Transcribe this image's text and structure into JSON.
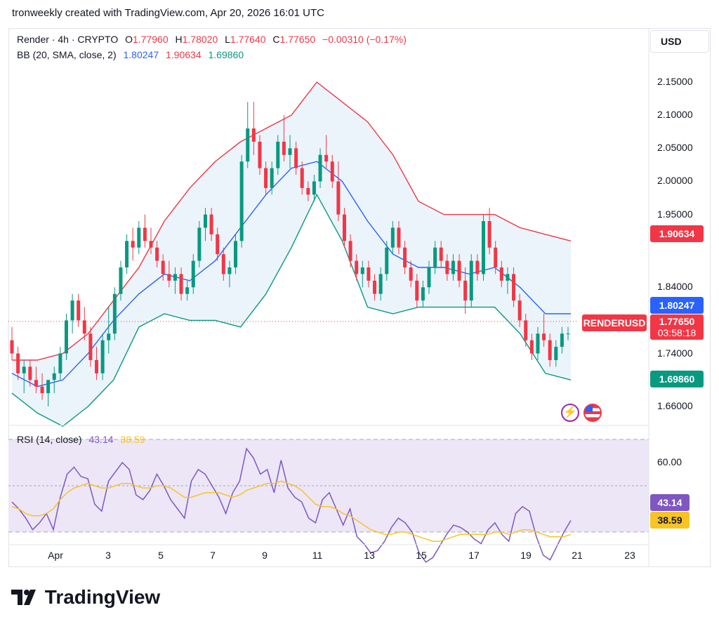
{
  "header": {
    "text": "tronweekly created with TradingView.com, Apr 20, 2026 16:01 UTC"
  },
  "legend": {
    "symbol": "Render · 4h · CRYPTO",
    "open_label": "O",
    "open": "1.77960",
    "high_label": "H",
    "high": "1.78020",
    "low_label": "L",
    "low": "1.77640",
    "close_label": "C",
    "close": "1.77650",
    "change": "−0.00310 (−0.17%)",
    "bb_label": "BB (20, SMA, close, 2)",
    "bb_basis": "1.80247",
    "bb_upper": "1.90634",
    "bb_lower": "1.69860"
  },
  "rsi_legend": {
    "label": "RSI (14, close)",
    "rsi": "43.14",
    "ma": "38.59"
  },
  "currency_button": "USD",
  "price_tags": {
    "upper": "1.90634",
    "basis": "1.80247",
    "symbol": "RENDERUSD",
    "last": "1.77650",
    "countdown": "03:58:18",
    "lower": "1.69860",
    "rsi": "43.14",
    "rsi_ma": "38.59"
  },
  "price_axis": [
    "2.15000",
    "2.10000",
    "2.05000",
    "2.00000",
    "1.95000",
    "1.84000",
    "1.74000",
    "1.66000"
  ],
  "rsi_axis": [
    "60.00"
  ],
  "time_axis": [
    "Apr",
    "3",
    "5",
    "7",
    "9",
    "11",
    "13",
    "15",
    "17",
    "19",
    "21",
    "23"
  ],
  "brand": "TradingView",
  "colors": {
    "up": "#089981",
    "down": "#f23645",
    "bb_basis": "#2962ff",
    "bb_upper": "#f23645",
    "bb_lower": "#089981",
    "bb_fill": "#e3effa",
    "rsi": "#7e57c2",
    "rsi_ma": "#f7c325",
    "rsi_band": "#ece6f7"
  },
  "chart_data": [
    {
      "type": "candlestick",
      "title": "Render · 4h · CRYPTO",
      "x_ticks": [
        "Apr",
        "3",
        "5",
        "7",
        "9",
        "11",
        "13",
        "15",
        "17",
        "19",
        "21",
        "23"
      ],
      "ylim": [
        1.63,
        2.17
      ],
      "y_ticks": [
        2.15,
        2.1,
        2.05,
        2.0,
        1.95,
        1.84,
        1.74,
        1.66
      ],
      "ohlc": [
        [
          1.76,
          1.78,
          1.73,
          1.74
        ],
        [
          1.74,
          1.75,
          1.7,
          1.71
        ],
        [
          1.71,
          1.73,
          1.68,
          1.72
        ],
        [
          1.72,
          1.73,
          1.69,
          1.7
        ],
        [
          1.7,
          1.72,
          1.68,
          1.69
        ],
        [
          1.69,
          1.71,
          1.67,
          1.68
        ],
        [
          1.68,
          1.7,
          1.66,
          1.7
        ],
        [
          1.7,
          1.72,
          1.68,
          1.71
        ],
        [
          1.71,
          1.75,
          1.7,
          1.74
        ],
        [
          1.74,
          1.8,
          1.73,
          1.79
        ],
        [
          1.79,
          1.83,
          1.77,
          1.82
        ],
        [
          1.82,
          1.83,
          1.78,
          1.79
        ],
        [
          1.79,
          1.81,
          1.76,
          1.77
        ],
        [
          1.77,
          1.78,
          1.72,
          1.73
        ],
        [
          1.73,
          1.75,
          1.7,
          1.71
        ],
        [
          1.71,
          1.77,
          1.7,
          1.76
        ],
        [
          1.76,
          1.81,
          1.74,
          1.77
        ],
        [
          1.77,
          1.84,
          1.76,
          1.83
        ],
        [
          1.83,
          1.88,
          1.82,
          1.87
        ],
        [
          1.87,
          1.92,
          1.86,
          1.91
        ],
        [
          1.91,
          1.93,
          1.88,
          1.9
        ],
        [
          1.9,
          1.94,
          1.89,
          1.93
        ],
        [
          1.93,
          1.95,
          1.9,
          1.91
        ],
        [
          1.91,
          1.93,
          1.89,
          1.9
        ],
        [
          1.9,
          1.91,
          1.87,
          1.88
        ],
        [
          1.88,
          1.89,
          1.85,
          1.86
        ],
        [
          1.86,
          1.88,
          1.84,
          1.85
        ],
        [
          1.85,
          1.87,
          1.83,
          1.86
        ],
        [
          1.86,
          1.87,
          1.82,
          1.83
        ],
        [
          1.83,
          1.85,
          1.82,
          1.84
        ],
        [
          1.84,
          1.89,
          1.83,
          1.88
        ],
        [
          1.88,
          1.94,
          1.87,
          1.93
        ],
        [
          1.93,
          1.96,
          1.91,
          1.95
        ],
        [
          1.95,
          1.96,
          1.91,
          1.92
        ],
        [
          1.92,
          1.93,
          1.88,
          1.89
        ],
        [
          1.89,
          1.9,
          1.85,
          1.86
        ],
        [
          1.86,
          1.88,
          1.84,
          1.87
        ],
        [
          1.87,
          1.92,
          1.86,
          1.91
        ],
        [
          1.91,
          2.04,
          1.9,
          2.03
        ],
        [
          2.03,
          2.12,
          2.02,
          2.08
        ],
        [
          2.08,
          2.12,
          2.04,
          2.06
        ],
        [
          2.06,
          2.07,
          2.01,
          2.02
        ],
        [
          2.02,
          2.03,
          1.98,
          1.99
        ],
        [
          1.99,
          2.03,
          1.98,
          2.02
        ],
        [
          2.02,
          2.07,
          2.01,
          2.06
        ],
        [
          2.06,
          2.1,
          2.03,
          2.04
        ],
        [
          2.04,
          2.07,
          2.02,
          2.05
        ],
        [
          2.05,
          2.06,
          2.01,
          2.02
        ],
        [
          2.02,
          2.03,
          1.98,
          1.99
        ],
        [
          1.99,
          2.0,
          1.97,
          1.98
        ],
        [
          1.98,
          2.01,
          1.97,
          2.0
        ],
        [
          2.0,
          2.05,
          1.99,
          2.04
        ],
        [
          2.04,
          2.07,
          2.02,
          2.03
        ],
        [
          2.03,
          2.04,
          1.99,
          2.0
        ],
        [
          2.0,
          2.03,
          1.94,
          1.95
        ],
        [
          1.95,
          1.96,
          1.9,
          1.91
        ],
        [
          1.91,
          1.92,
          1.87,
          1.88
        ],
        [
          1.88,
          1.89,
          1.85,
          1.86
        ],
        [
          1.86,
          1.88,
          1.84,
          1.87
        ],
        [
          1.87,
          1.88,
          1.84,
          1.85
        ],
        [
          1.85,
          1.86,
          1.82,
          1.83
        ],
        [
          1.83,
          1.87,
          1.82,
          1.86
        ],
        [
          1.86,
          1.91,
          1.85,
          1.9
        ],
        [
          1.9,
          1.94,
          1.89,
          1.93
        ],
        [
          1.93,
          1.94,
          1.89,
          1.9
        ],
        [
          1.9,
          1.91,
          1.86,
          1.87
        ],
        [
          1.87,
          1.88,
          1.84,
          1.85
        ],
        [
          1.85,
          1.86,
          1.81,
          1.82
        ],
        [
          1.82,
          1.85,
          1.81,
          1.84
        ],
        [
          1.84,
          1.88,
          1.83,
          1.87
        ],
        [
          1.87,
          1.91,
          1.86,
          1.9
        ],
        [
          1.9,
          1.91,
          1.87,
          1.88
        ],
        [
          1.88,
          1.89,
          1.85,
          1.86
        ],
        [
          1.86,
          1.89,
          1.85,
          1.88
        ],
        [
          1.88,
          1.89,
          1.84,
          1.85
        ],
        [
          1.85,
          1.87,
          1.8,
          1.82
        ],
        [
          1.82,
          1.89,
          1.81,
          1.88
        ],
        [
          1.88,
          1.89,
          1.85,
          1.86
        ],
        [
          1.86,
          1.95,
          1.85,
          1.94
        ],
        [
          1.94,
          1.96,
          1.89,
          1.9
        ],
        [
          1.9,
          1.91,
          1.86,
          1.87
        ],
        [
          1.87,
          1.88,
          1.84,
          1.85
        ],
        [
          1.85,
          1.87,
          1.83,
          1.86
        ],
        [
          1.86,
          1.87,
          1.81,
          1.82
        ],
        [
          1.82,
          1.83,
          1.78,
          1.79
        ],
        [
          1.79,
          1.8,
          1.75,
          1.76
        ],
        [
          1.76,
          1.77,
          1.73,
          1.74
        ],
        [
          1.74,
          1.78,
          1.73,
          1.77
        ],
        [
          1.77,
          1.8,
          1.75,
          1.76
        ],
        [
          1.76,
          1.77,
          1.72,
          1.73
        ],
        [
          1.73,
          1.76,
          1.72,
          1.75
        ],
        [
          1.75,
          1.78,
          1.74,
          1.77
        ],
        [
          1.77,
          1.78,
          1.76,
          1.77
        ]
      ],
      "bb_upper": [
        1.73,
        1.73,
        1.74,
        1.77,
        1.82,
        1.87,
        1.94,
        1.99,
        2.03,
        2.06,
        2.08,
        2.1,
        2.15,
        2.12,
        2.09,
        2.04,
        1.97,
        1.95,
        1.95,
        1.95,
        1.93,
        1.92,
        1.91
      ],
      "bb_basis": [
        1.71,
        1.69,
        1.7,
        1.74,
        1.79,
        1.83,
        1.86,
        1.85,
        1.88,
        1.93,
        1.98,
        2.02,
        2.03,
        2.0,
        1.94,
        1.89,
        1.87,
        1.87,
        1.86,
        1.87,
        1.84,
        1.8,
        1.8
      ],
      "bb_lower": [
        1.68,
        1.65,
        1.63,
        1.66,
        1.7,
        1.78,
        1.8,
        1.79,
        1.79,
        1.78,
        1.83,
        1.9,
        1.98,
        1.91,
        1.81,
        1.8,
        1.81,
        1.81,
        1.81,
        1.81,
        1.77,
        1.71,
        1.7
      ],
      "last_price": 1.7765
    },
    {
      "type": "line",
      "title": "RSI (14, close)",
      "y_ticks": [
        60
      ],
      "ylim": [
        20,
        80
      ],
      "series": [
        {
          "name": "RSI",
          "values": [
            43,
            40,
            36,
            31,
            34,
            38,
            31,
            45,
            55,
            58,
            54,
            53,
            42,
            39,
            52,
            56,
            60,
            57,
            46,
            44,
            48,
            55,
            50,
            44,
            40,
            36,
            52,
            57,
            55,
            50,
            45,
            38,
            47,
            52,
            66,
            62,
            55,
            57,
            47,
            61,
            49,
            45,
            43,
            36,
            34,
            44,
            47,
            40,
            33,
            40,
            28,
            25,
            21,
            22,
            26,
            32,
            36,
            34,
            30,
            21,
            17,
            19,
            24,
            29,
            33,
            32,
            30,
            27,
            25,
            31,
            34,
            29,
            26,
            38,
            41,
            39,
            28,
            20,
            18,
            24,
            30,
            35
          ]
        },
        {
          "name": "MA",
          "values": [
            41,
            40,
            38,
            37,
            37,
            38,
            40,
            44,
            47,
            49,
            50,
            51,
            50,
            49,
            49,
            50,
            51,
            51,
            50,
            49,
            49,
            50,
            50,
            49,
            47,
            45,
            45,
            46,
            47,
            47,
            47,
            46,
            45,
            46,
            48,
            49,
            50,
            51,
            51,
            52,
            51,
            50,
            48,
            45,
            42,
            41,
            41,
            40,
            38,
            37,
            35,
            33,
            31,
            30,
            29,
            29,
            30,
            30,
            29,
            28,
            27,
            26,
            26,
            27,
            28,
            29,
            29,
            29,
            29,
            29,
            30,
            30,
            29,
            30,
            31,
            31,
            30,
            29,
            28,
            28,
            28,
            29
          ]
        }
      ]
    }
  ]
}
